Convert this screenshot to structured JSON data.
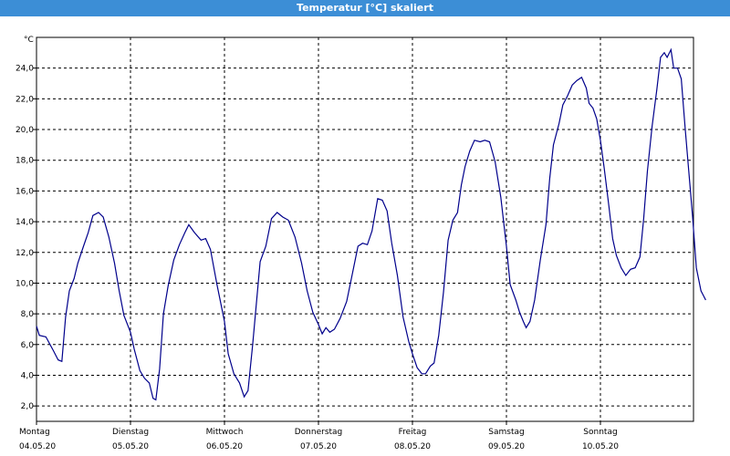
{
  "window": {
    "title": "Temperatur [°C] skaliert"
  },
  "chart_data": {
    "type": "line",
    "title": "Temperatur [°C] skaliert",
    "ylabel": "°C",
    "xlabel": "",
    "ylim": [
      1.0,
      26.0
    ],
    "yticks": [
      2.0,
      4.0,
      6.0,
      8.0,
      10.0,
      12.0,
      14.0,
      16.0,
      18.0,
      20.0,
      22.0,
      24.0
    ],
    "ytick_labels": [
      "2,0",
      "4,0",
      "6,0",
      "8,0",
      "10,0",
      "12,0",
      "14,0",
      "16,0",
      "18,0",
      "20,0",
      "22,0",
      "24,0"
    ],
    "xlim": [
      0,
      7
    ],
    "xticks": [
      {
        "day": "Montag",
        "date": "04.05.20",
        "pos": 0
      },
      {
        "day": "Dienstag",
        "date": "05.05.20",
        "pos": 1
      },
      {
        "day": "Mittwoch",
        "date": "06.05.20",
        "pos": 2
      },
      {
        "day": "Donnerstag",
        "date": "07.05.20",
        "pos": 3
      },
      {
        "day": "Freitag",
        "date": "08.05.20",
        "pos": 4
      },
      {
        "day": "Samstag",
        "date": "09.05.20",
        "pos": 5
      },
      {
        "day": "Sonntag",
        "date": "10.05.20",
        "pos": 6
      }
    ],
    "grid": true,
    "series": [
      {
        "color": "#00008b",
        "points": [
          [
            0.0,
            7.2
          ],
          [
            0.03,
            6.6
          ],
          [
            0.1,
            6.5
          ],
          [
            0.18,
            5.6
          ],
          [
            0.23,
            5.0
          ],
          [
            0.27,
            4.9
          ],
          [
            0.31,
            7.8
          ],
          [
            0.35,
            9.5
          ],
          [
            0.4,
            10.3
          ],
          [
            0.44,
            11.3
          ],
          [
            0.5,
            12.4
          ],
          [
            0.55,
            13.3
          ],
          [
            0.6,
            14.4
          ],
          [
            0.66,
            14.6
          ],
          [
            0.71,
            14.3
          ],
          [
            0.77,
            13.0
          ],
          [
            0.83,
            11.3
          ],
          [
            0.88,
            9.5
          ],
          [
            0.93,
            7.9
          ],
          [
            1.0,
            6.8
          ],
          [
            1.04,
            5.7
          ],
          [
            1.1,
            4.3
          ],
          [
            1.15,
            3.8
          ],
          [
            1.2,
            3.5
          ],
          [
            1.24,
            2.5
          ],
          [
            1.27,
            2.4
          ],
          [
            1.31,
            4.4
          ],
          [
            1.35,
            8.0
          ],
          [
            1.4,
            9.8
          ],
          [
            1.46,
            11.5
          ],
          [
            1.52,
            12.5
          ],
          [
            1.58,
            13.3
          ],
          [
            1.62,
            13.8
          ],
          [
            1.68,
            13.3
          ],
          [
            1.75,
            12.8
          ],
          [
            1.8,
            12.9
          ],
          [
            1.85,
            12.2
          ],
          [
            1.92,
            9.9
          ],
          [
            2.0,
            7.5
          ],
          [
            2.04,
            5.4
          ],
          [
            2.1,
            4.1
          ],
          [
            2.16,
            3.5
          ],
          [
            2.21,
            2.6
          ],
          [
            2.25,
            3.0
          ],
          [
            2.3,
            6.0
          ],
          [
            2.38,
            11.4
          ],
          [
            2.44,
            12.4
          ],
          [
            2.5,
            14.2
          ],
          [
            2.56,
            14.6
          ],
          [
            2.62,
            14.3
          ],
          [
            2.68,
            14.1
          ],
          [
            2.75,
            13.0
          ],
          [
            2.82,
            11.3
          ],
          [
            2.88,
            9.5
          ],
          [
            2.94,
            8.1
          ],
          [
            3.0,
            7.3
          ],
          [
            3.04,
            6.7
          ],
          [
            3.08,
            7.1
          ],
          [
            3.12,
            6.8
          ],
          [
            3.17,
            7.0
          ],
          [
            3.23,
            7.7
          ],
          [
            3.3,
            8.8
          ],
          [
            3.35,
            10.3
          ],
          [
            3.42,
            12.4
          ],
          [
            3.47,
            12.6
          ],
          [
            3.52,
            12.5
          ],
          [
            3.57,
            13.4
          ],
          [
            3.63,
            15.5
          ],
          [
            3.68,
            15.4
          ],
          [
            3.73,
            14.7
          ],
          [
            3.78,
            12.6
          ],
          [
            3.84,
            10.5
          ],
          [
            3.9,
            7.8
          ],
          [
            3.96,
            6.2
          ],
          [
            4.0,
            5.4
          ],
          [
            4.05,
            4.5
          ],
          [
            4.1,
            4.1
          ],
          [
            4.14,
            4.1
          ],
          [
            4.19,
            4.6
          ],
          [
            4.23,
            4.8
          ],
          [
            4.28,
            6.6
          ],
          [
            4.33,
            9.4
          ],
          [
            4.38,
            12.8
          ],
          [
            4.43,
            14.1
          ],
          [
            4.48,
            14.6
          ],
          [
            4.52,
            16.4
          ],
          [
            4.56,
            17.6
          ],
          [
            4.61,
            18.6
          ],
          [
            4.66,
            19.3
          ],
          [
            4.72,
            19.2
          ],
          [
            4.77,
            19.3
          ],
          [
            4.82,
            19.2
          ],
          [
            4.88,
            17.9
          ],
          [
            4.94,
            15.6
          ],
          [
            5.0,
            12.4
          ],
          [
            5.04,
            9.9
          ],
          [
            5.1,
            8.9
          ],
          [
            5.14,
            8.1
          ],
          [
            5.18,
            7.5
          ],
          [
            5.21,
            7.1
          ],
          [
            5.25,
            7.5
          ],
          [
            5.3,
            8.9
          ],
          [
            5.36,
            11.5
          ],
          [
            5.42,
            13.8
          ],
          [
            5.46,
            16.8
          ],
          [
            5.5,
            19.0
          ],
          [
            5.56,
            20.4
          ],
          [
            5.6,
            21.6
          ],
          [
            5.65,
            22.2
          ],
          [
            5.7,
            22.9
          ],
          [
            5.75,
            23.2
          ],
          [
            5.8,
            23.4
          ],
          [
            5.85,
            22.7
          ],
          [
            5.88,
            21.7
          ],
          [
            5.92,
            21.4
          ],
          [
            5.96,
            20.7
          ],
          [
            6.0,
            19.3
          ],
          [
            6.04,
            17.5
          ],
          [
            6.09,
            15.0
          ],
          [
            6.13,
            12.9
          ],
          [
            6.17,
            11.8
          ],
          [
            6.22,
            11.0
          ],
          [
            6.27,
            10.5
          ],
          [
            6.32,
            10.9
          ],
          [
            6.37,
            11.0
          ],
          [
            6.42,
            11.7
          ],
          [
            6.46,
            14.2
          ],
          [
            6.5,
            17.3
          ],
          [
            6.55,
            20.2
          ],
          [
            6.6,
            22.6
          ],
          [
            6.64,
            24.7
          ],
          [
            6.68,
            25.0
          ],
          [
            6.71,
            24.7
          ],
          [
            6.75,
            25.2
          ],
          [
            6.78,
            24.0
          ],
          [
            6.82,
            24.0
          ],
          [
            6.86,
            23.3
          ],
          [
            6.9,
            20.2
          ],
          [
            6.94,
            17.3
          ],
          [
            6.98,
            14.4
          ],
          [
            7.02,
            11.0
          ],
          [
            7.07,
            9.5
          ],
          [
            7.12,
            8.9
          ]
        ]
      }
    ]
  }
}
